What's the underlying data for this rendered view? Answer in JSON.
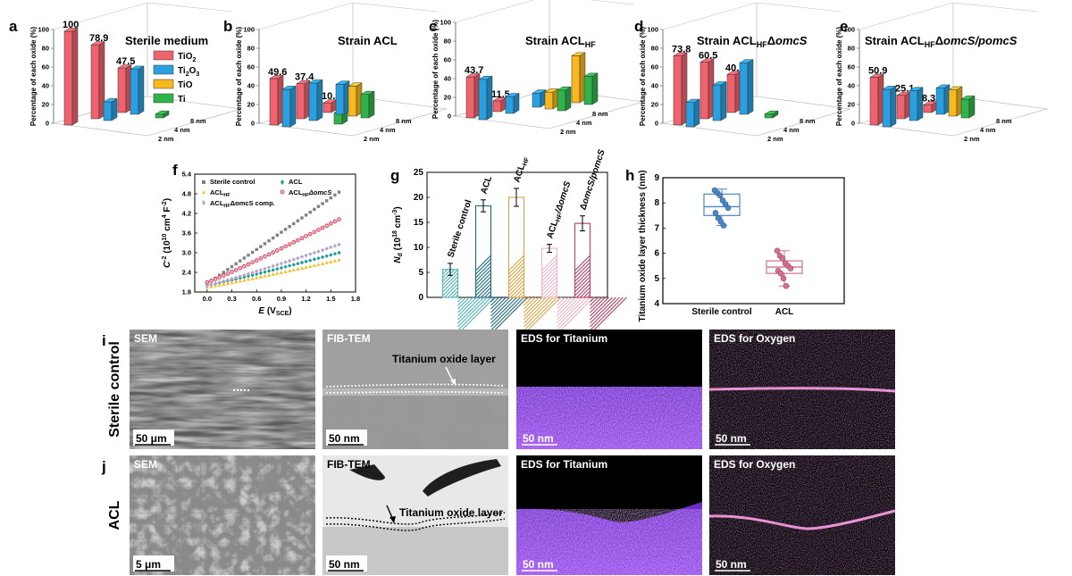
{
  "colors": {
    "TiO2": "#f0626d",
    "Ti2O3": "#2aa0e0",
    "TiO": "#f7b820",
    "Ti": "#2fb34a",
    "sterile_control": "#808080",
    "ACL": "#1d9a9a",
    "ACL_HF": "#f4c02f",
    "ACL_HF_dOmcS": "#c8334f",
    "ACL_HF_dOmcS_comp": "#b8a0c8",
    "box_sterile": "#4a87c5",
    "box_acl": "#d6708f",
    "eds_ti": "#8a3ee0",
    "eds_o": "#ff9fe8"
  },
  "chart_data": [
    {
      "panel": "a",
      "type": "bar3d",
      "title": "Sterile medium",
      "ylabel": "Percentage of each oxide (%)",
      "ylim": [
        0,
        100
      ],
      "yticks": [
        "0",
        "20",
        "40",
        "60",
        "80",
        "100"
      ],
      "depth_labels": [
        "2 nm",
        "4 nm",
        "8 nm"
      ],
      "legend": [
        "TiO",
        "2",
        "Ti",
        "2",
        "O",
        "3",
        "TiO",
        "Ti"
      ],
      "groups": [
        {
          "depth": "2 nm",
          "values": [
            100,
            0,
            0,
            0
          ],
          "label": "100"
        },
        {
          "depth": "4 nm",
          "values": [
            78.9,
            20,
            0,
            0
          ],
          "label": "78.9"
        },
        {
          "depth": "8 nm",
          "values": [
            47.5,
            48,
            0,
            4
          ],
          "label": "47.5"
        }
      ]
    },
    {
      "panel": "b",
      "type": "bar3d",
      "title": "Strain ACL",
      "ylabel": "Percentage of each oxide (%)",
      "ylim": [
        0,
        100
      ],
      "yticks": [
        "0",
        "20",
        "40",
        "60",
        "80",
        "100"
      ],
      "depth_labels": [
        "2 nm",
        "4 nm",
        "8 nm"
      ],
      "groups": [
        {
          "depth": "2 nm",
          "values": [
            49.6,
            40,
            0,
            0
          ],
          "label": "49.6"
        },
        {
          "depth": "4 nm",
          "values": [
            37.4,
            40,
            0,
            12
          ],
          "label": "37.4"
        },
        {
          "depth": "8 nm",
          "values": [
            10.3,
            32,
            32,
            25
          ],
          "label": "10.3"
        }
      ]
    },
    {
      "panel": "c",
      "type": "bar3d",
      "title": "Strain ACL",
      "title_sub": "HF",
      "ylabel": "Percentage of each oxide (%)",
      "ylim": [
        0,
        100
      ],
      "yticks": [
        "0",
        "20",
        "40",
        "60",
        "80",
        "100"
      ],
      "depth_labels": [
        "2 nm",
        "4 nm",
        "8 nm"
      ],
      "groups": [
        {
          "depth": "2 nm",
          "values": [
            43.7,
            43,
            0,
            0
          ],
          "label": "43.7"
        },
        {
          "depth": "4 nm",
          "values": [
            11.5,
            18,
            0,
            0
          ],
          "label": "11.5"
        },
        {
          "depth": "8 nm",
          "values": [
            0,
            15,
            18,
            22
          ],
          "label": "0"
        },
        {
          "depth": "8 nm",
          "values": [
            0,
            0,
            50,
            30
          ],
          "label": ""
        }
      ]
    },
    {
      "panel": "d",
      "type": "bar3d",
      "title": "Strain ACL",
      "title_sub": "HF",
      "title_tail": "Δ",
      "title_ital": "omcS",
      "ylabel": "Percentage of each oxide (%)",
      "ylim": [
        0,
        100
      ],
      "yticks": [
        "0",
        "20",
        "40",
        "60",
        "80",
        "100"
      ],
      "depth_labels": [
        "2 nm",
        "4 nm",
        "8 nm"
      ],
      "groups": [
        {
          "depth": "2 nm",
          "values": [
            73.8,
            26,
            0,
            0
          ],
          "label": "73.8"
        },
        {
          "depth": "4 nm",
          "values": [
            60.5,
            38,
            0,
            0
          ],
          "label": "60.5"
        },
        {
          "depth": "8 nm",
          "values": [
            40.7,
            55,
            0,
            4
          ],
          "label": "40.7"
        }
      ]
    },
    {
      "panel": "e",
      "type": "bar3d",
      "title": "Strain ACL",
      "title_sub": "HF",
      "title_tail": "Δ",
      "title_ital": "omcS/pomcS",
      "ylabel": "Percentage of each oxide (%)",
      "ylim": [
        0,
        100
      ],
      "yticks": [
        "0",
        "20",
        "40",
        "60",
        "80",
        "100"
      ],
      "depth_labels": [
        "2 nm",
        "4 nm",
        "8 nm"
      ],
      "groups": [
        {
          "depth": "2 nm",
          "values": [
            50.9,
            40,
            0,
            0
          ],
          "label": "50.9"
        },
        {
          "depth": "4 nm",
          "values": [
            25.1,
            32,
            0,
            0
          ],
          "label": "25.1"
        },
        {
          "depth": "8 nm",
          "values": [
            8.3,
            28,
            28,
            20
          ],
          "label": "8.3"
        }
      ]
    },
    {
      "panel": "f",
      "type": "scatter",
      "xlim": [
        -0.15,
        1.8
      ],
      "ylim": [
        1.8,
        5.4
      ],
      "xticks": [
        "0.0",
        "0.3",
        "0.6",
        "0.9",
        "1.2",
        "1.5",
        "1.8"
      ],
      "yticks": [
        "1.8",
        "2.4",
        "3.0",
        "3.6",
        "4.2",
        "4.8",
        "5.4"
      ],
      "xlabel": "E (VSCE)",
      "ylabel": "C-2 (1010 cm4 F-2)",
      "legend": [
        "Sterile control",
        "ACL",
        "ACL",
        "HF",
        "ACL",
        "HF",
        "ΔomcS",
        "ACL",
        "HF",
        "ΔomcS comp."
      ],
      "series": [
        {
          "name": "Sterile control",
          "start": 2.05,
          "end": 4.85
        },
        {
          "name": "ACL",
          "start": 2.0,
          "end": 3.0
        },
        {
          "name": "ACLHF",
          "start": 1.95,
          "end": 2.78
        },
        {
          "name": "ACLHFΔomcS",
          "start": 2.1,
          "end": 4.02
        },
        {
          "name": "ACLHFΔomcS comp.",
          "start": 2.0,
          "end": 3.25
        }
      ]
    },
    {
      "panel": "g",
      "type": "bar",
      "ylabel": "Nd (1018 cm-3)",
      "ylim": [
        0,
        25
      ],
      "yticks": [
        "0",
        "5",
        "10",
        "15",
        "20",
        "25"
      ],
      "categories": [
        "Sterile control",
        "ACL",
        "ACLHF",
        "ACLHF/ΔomcS",
        "ΔomcS/pomcS"
      ],
      "category_display": [
        {
          "main": "Sterile control"
        },
        {
          "main": "ACL"
        },
        {
          "main": "ACL",
          "sub": "HF"
        },
        {
          "main": "ACL",
          "sub": "HF",
          "tail": "/ΔomcS"
        },
        {
          "main": "ΔomcS/pomcS"
        }
      ],
      "values": [
        5.6,
        18.3,
        20.0,
        9.8,
        14.8
      ],
      "errors": [
        1.2,
        1.2,
        1.8,
        0.8,
        1.5
      ]
    },
    {
      "panel": "h",
      "type": "box",
      "ylabel": "Titanium oxide layer thickness (nm)",
      "ylim": [
        4,
        9
      ],
      "yticks": [
        "4",
        "5",
        "6",
        "7",
        "8",
        "9"
      ],
      "categories": [
        "Sterile control",
        "ACL"
      ],
      "boxes": [
        {
          "q1": 7.5,
          "median": 7.85,
          "q3": 8.35,
          "min": 7.1,
          "max": 8.55,
          "points": [
            8.5,
            8.4,
            8.3,
            8.1,
            7.95,
            7.8,
            7.6,
            7.4,
            7.25,
            7.1
          ]
        },
        {
          "q1": 5.2,
          "median": 5.45,
          "q3": 5.7,
          "min": 4.7,
          "max": 6.1,
          "points": [
            6.1,
            5.9,
            5.8,
            5.6,
            5.5,
            5.4,
            5.3,
            5.2,
            5.0,
            4.7
          ]
        }
      ]
    }
  ],
  "micrographs": {
    "rows": [
      {
        "panel": "i",
        "row_label": "Sterile control",
        "tiles": [
          {
            "label": "SEM",
            "scale": "50 μm",
            "kind": "sem"
          },
          {
            "label": "FIB-TEM",
            "scale": "50 nm",
            "kind": "tem",
            "annotation": "Titanium oxide layer"
          },
          {
            "label": "EDS for Titanium",
            "scale": "50 nm",
            "kind": "eds-ti"
          },
          {
            "label": "EDS for Oxygen",
            "scale": "50 nm",
            "kind": "eds-o"
          }
        ]
      },
      {
        "panel": "j",
        "row_label": "ACL",
        "tiles": [
          {
            "label": "SEM",
            "scale": "5 μm",
            "kind": "sem2"
          },
          {
            "label": "FIB-TEM",
            "scale": "50 nm",
            "kind": "tem2",
            "annotation": "Titanium oxide layer"
          },
          {
            "label": "EDS for Titanium",
            "scale": "50 nm",
            "kind": "eds-ti2"
          },
          {
            "label": "EDS for Oxygen",
            "scale": "50 nm",
            "kind": "eds-o2"
          }
        ]
      }
    ]
  }
}
